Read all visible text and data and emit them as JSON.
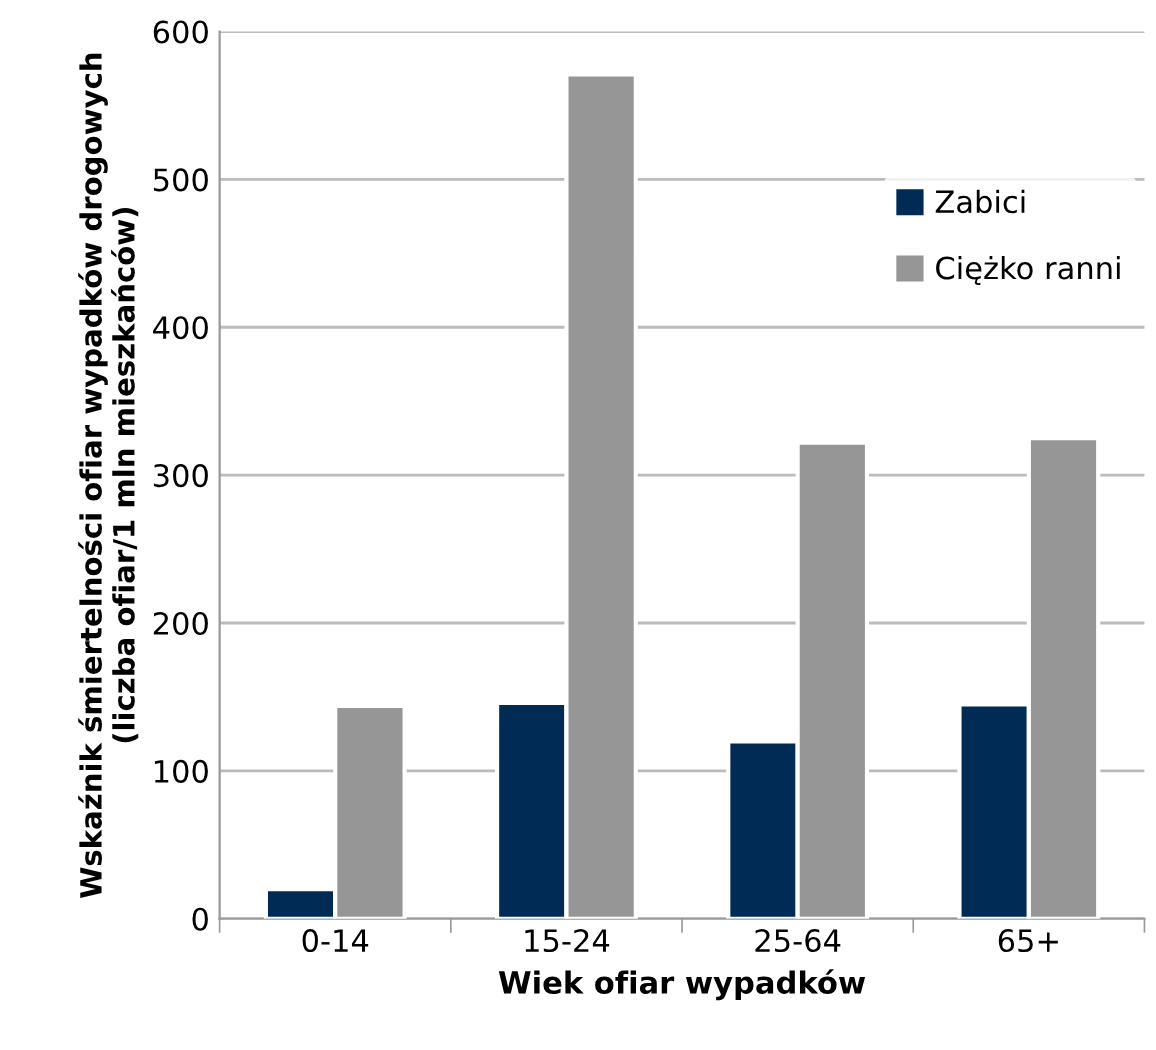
{
  "chart_data": {
    "type": "bar",
    "xlabel": "Wiek ofiar wypadków",
    "ylabel": "Wskaźnik śmiertelności ofiar wypadków drogowych\n(liczba ofiar/1 mln mieszkańców)",
    "categories": [
      "0-14",
      "15-24",
      "25-64",
      "65+"
    ],
    "series": [
      {
        "name": "Zabici",
        "color": "#002b55",
        "values": [
          20,
          146,
          120,
          145
        ]
      },
      {
        "name": "Ciężko ranni",
        "color": "#969696",
        "values": [
          144,
          571,
          322,
          325
        ]
      }
    ],
    "ylim": [
      0,
      600
    ],
    "yticks": [
      0,
      100,
      200,
      300,
      400,
      500,
      600
    ],
    "grid": "y",
    "legend": "top right"
  }
}
